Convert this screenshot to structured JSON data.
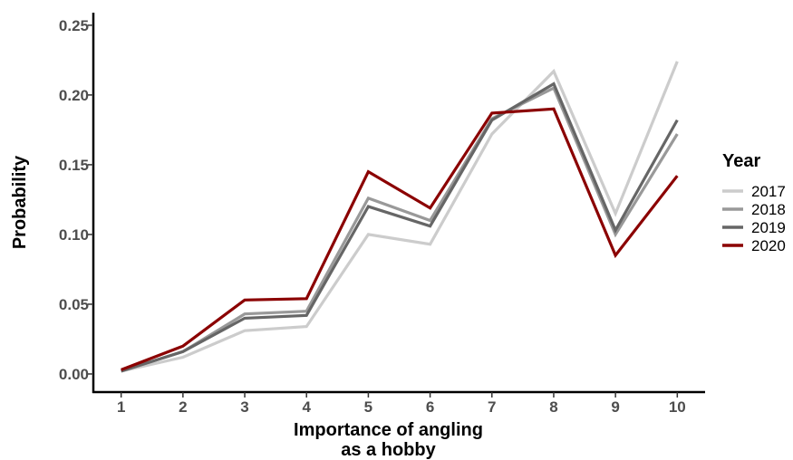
{
  "chart_data": {
    "type": "line",
    "title": "",
    "xlabel": "Importance of angling as a hobby",
    "ylabel": "Probability",
    "x": [
      1,
      2,
      3,
      4,
      5,
      6,
      7,
      8,
      9,
      10
    ],
    "x_tick_labels": [
      "1",
      "2",
      "3",
      "4",
      "5",
      "6",
      "7",
      "8",
      "9",
      "10"
    ],
    "y_tick_labels": [
      "0.00",
      "0.05",
      "0.10",
      "0.15",
      "0.20",
      "0.25"
    ],
    "y_ticks": [
      0,
      0.05,
      0.1,
      0.15,
      0.2,
      0.25
    ],
    "ylim": [
      -0.013,
      0.259
    ],
    "xlim": [
      0.55,
      10.45
    ],
    "grid": false,
    "legend": {
      "title": "Year",
      "position": "right"
    },
    "series": [
      {
        "name": "2017",
        "color": "#cccccc",
        "values": [
          0.002,
          0.012,
          0.031,
          0.034,
          0.1,
          0.093,
          0.172,
          0.217,
          0.115,
          0.224
        ]
      },
      {
        "name": "2018",
        "color": "#999999",
        "values": [
          0.002,
          0.016,
          0.043,
          0.045,
          0.126,
          0.11,
          0.183,
          0.205,
          0.1,
          0.172
        ]
      },
      {
        "name": "2019",
        "color": "#666666",
        "values": [
          0.002,
          0.016,
          0.04,
          0.042,
          0.12,
          0.106,
          0.182,
          0.208,
          0.103,
          0.182
        ]
      },
      {
        "name": "2020",
        "color": "#8b0000",
        "values": [
          0.003,
          0.02,
          0.053,
          0.054,
          0.145,
          0.119,
          0.187,
          0.19,
          0.085,
          0.142
        ]
      }
    ]
  }
}
